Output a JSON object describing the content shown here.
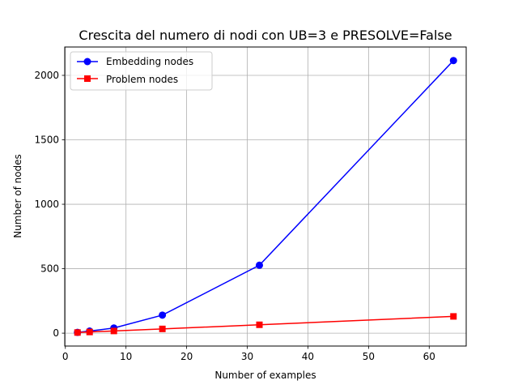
{
  "chart_data": {
    "type": "line",
    "title": "Crescita del numero di nodi con UB=3 e PRESOLVE=False",
    "xlabel": "Number of examples",
    "ylabel": "Number of nodes",
    "xlim": [
      -0.1,
      66.1
    ],
    "ylim": [
      -100,
      2220
    ],
    "xticks": [
      0,
      10,
      20,
      30,
      40,
      50,
      60
    ],
    "yticks": [
      0,
      500,
      1000,
      1500,
      2000
    ],
    "grid": true,
    "legend_position": "upper left",
    "series": [
      {
        "name": "Embedding nodes",
        "color": "#0000ff",
        "marker": "circle",
        "x": [
          2,
          4,
          8,
          16,
          32,
          64
        ],
        "y": [
          6,
          16,
          40,
          140,
          527,
          2115
        ]
      },
      {
        "name": "Problem nodes",
        "color": "#ff0000",
        "marker": "square",
        "x": [
          2,
          4,
          8,
          16,
          32,
          64
        ],
        "y": [
          5,
          9,
          17,
          33,
          65,
          130
        ]
      }
    ]
  }
}
